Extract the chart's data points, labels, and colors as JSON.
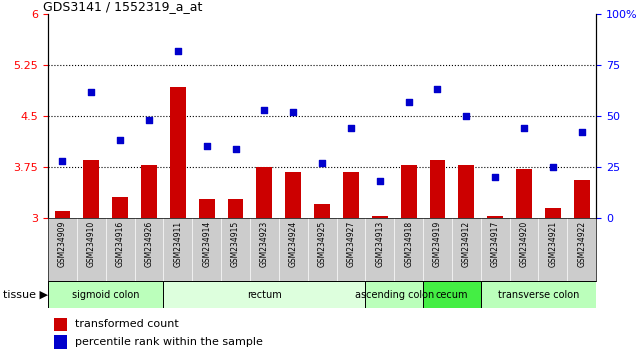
{
  "title": "GDS3141 / 1552319_a_at",
  "samples": [
    "GSM234909",
    "GSM234910",
    "GSM234916",
    "GSM234926",
    "GSM234911",
    "GSM234914",
    "GSM234915",
    "GSM234923",
    "GSM234924",
    "GSM234925",
    "GSM234927",
    "GSM234913",
    "GSM234918",
    "GSM234919",
    "GSM234912",
    "GSM234917",
    "GSM234920",
    "GSM234921",
    "GSM234922"
  ],
  "bar_values": [
    3.1,
    3.85,
    3.3,
    3.78,
    4.93,
    3.28,
    3.27,
    3.75,
    3.68,
    3.2,
    3.68,
    3.02,
    3.78,
    3.85,
    3.78,
    3.02,
    3.72,
    3.15,
    3.55
  ],
  "dot_values": [
    28,
    62,
    38,
    48,
    82,
    35,
    34,
    53,
    52,
    27,
    44,
    18,
    57,
    63,
    50,
    20,
    44,
    25,
    42
  ],
  "ylim_left": [
    3,
    6
  ],
  "ylim_right": [
    0,
    100
  ],
  "yticks_left": [
    3,
    3.75,
    4.5,
    5.25,
    6
  ],
  "yticks_right": [
    0,
    25,
    50,
    75,
    100
  ],
  "ytick_labels_left": [
    "3",
    "3.75",
    "4.5",
    "5.25",
    "6"
  ],
  "ytick_labels_right": [
    "0",
    "25",
    "50",
    "75",
    "100%"
  ],
  "hlines": [
    3.75,
    4.5,
    5.25
  ],
  "bar_color": "#cc0000",
  "dot_color": "#0000cc",
  "bar_bottom": 3.0,
  "tissue_groups": [
    {
      "label": "sigmoid colon",
      "start": 0,
      "end": 4,
      "color": "#bbffbb"
    },
    {
      "label": "rectum",
      "start": 4,
      "end": 11,
      "color": "#ddffdd"
    },
    {
      "label": "ascending colon",
      "start": 11,
      "end": 13,
      "color": "#bbffbb"
    },
    {
      "label": "cecum",
      "start": 13,
      "end": 15,
      "color": "#44ee44"
    },
    {
      "label": "transverse colon",
      "start": 15,
      "end": 19,
      "color": "#bbffbb"
    }
  ],
  "legend_bar_label": "transformed count",
  "legend_dot_label": "percentile rank within the sample",
  "xlabel_tissue": "tissue ▶",
  "xtick_bg": "#cccccc",
  "fig_bg": "#ffffff"
}
